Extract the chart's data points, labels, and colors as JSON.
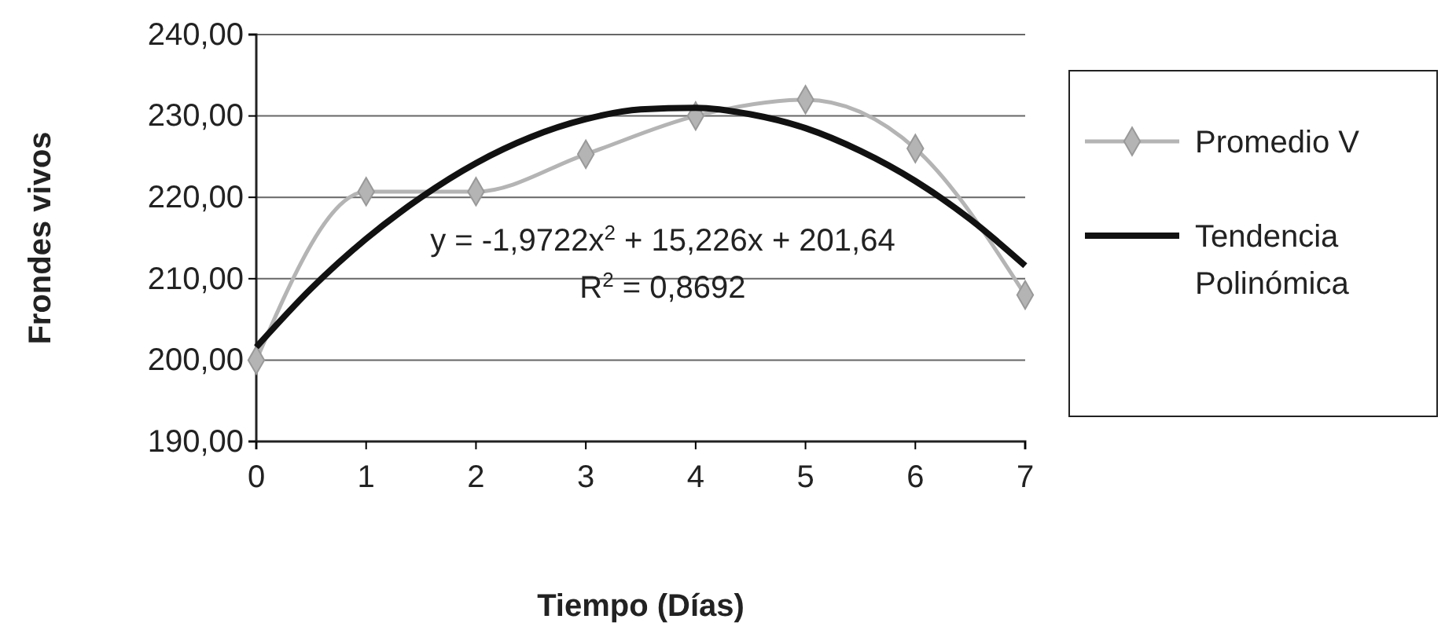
{
  "chart_data": {
    "type": "line",
    "xlabel": "Tiempo (Días)",
    "ylabel": "Frondes vivos",
    "xlim": [
      0,
      7
    ],
    "xticks": [
      0,
      1,
      2,
      3,
      4,
      5,
      6,
      7
    ],
    "ylim": [
      190,
      240
    ],
    "yticks": [
      {
        "value": 190,
        "label": "190,00"
      },
      {
        "value": 200,
        "label": "200,00"
      },
      {
        "value": 210,
        "label": "210,00"
      },
      {
        "value": 220,
        "label": "220,00"
      },
      {
        "value": 230,
        "label": "230,00"
      },
      {
        "value": 240,
        "label": "240,00"
      }
    ],
    "grid": "y",
    "legend": "right",
    "series": [
      {
        "name": "Promedio V",
        "color": "#b4b4b4",
        "marker": "diamond",
        "x": [
          0,
          1,
          2,
          3,
          4,
          5,
          6,
          7
        ],
        "values": [
          200,
          220.7,
          220.7,
          225.3,
          230,
          232,
          226,
          208
        ]
      },
      {
        "name": "Tendencia Polinómica",
        "color": "#111111",
        "marker": "none",
        "x": [
          0,
          0.5,
          1,
          1.5,
          2,
          2.5,
          3,
          3.5,
          4,
          4.5,
          5,
          5.5,
          6,
          6.5,
          7
        ],
        "values": [
          201.6,
          208.8,
          214.9,
          220,
          224.2,
          227.4,
          229.6,
          230.8,
          231,
          230.2,
          228.5,
          225.7,
          222,
          217.3,
          211.6
        ]
      }
    ],
    "annotations": [
      "y = -1,9722x$^{2}$ + 15,226x + 201,64",
      "R$^{2}$ = 0,8692"
    ]
  }
}
